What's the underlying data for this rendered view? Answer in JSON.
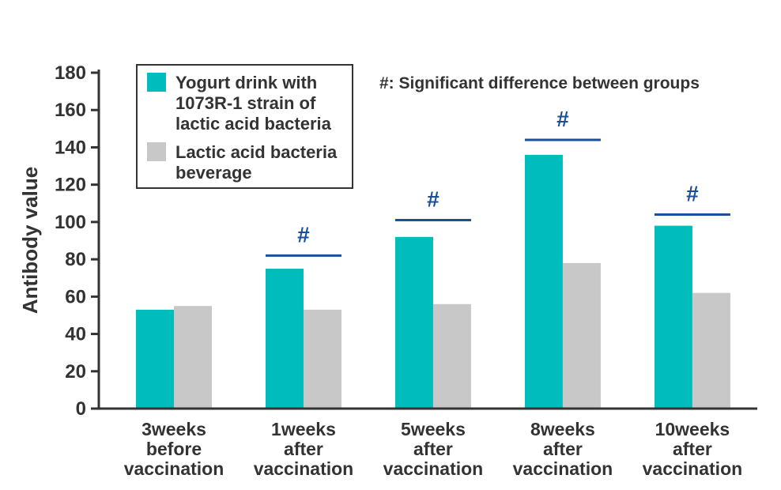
{
  "chart_data": {
    "type": "bar",
    "ylabel": "Antibody value",
    "xlabel": "",
    "ylim": [
      0,
      180
    ],
    "yticks": [
      0,
      20,
      40,
      60,
      80,
      100,
      120,
      140,
      160,
      180
    ],
    "grid": false,
    "legend_position": "top-left",
    "categories": [
      [
        "3weeks",
        "before",
        "vaccination"
      ],
      [
        "1weeks",
        "after",
        "vaccination"
      ],
      [
        "5weeks",
        "after",
        "vaccination"
      ],
      [
        "8weeks",
        "after",
        "vaccination"
      ],
      [
        "10weeks",
        "after",
        "vaccination"
      ]
    ],
    "series": [
      {
        "name": "Yogurt drink with 1073R-1 strain of lactic acid bacteria",
        "legend_lines": [
          "Yogurt drink with",
          "1073R-1 strain of",
          "lactic acid bacteria"
        ],
        "color": "#00bcbc",
        "values": [
          53,
          75,
          92,
          136,
          98
        ]
      },
      {
        "name": "Lactic acid bacteria beverage",
        "legend_lines": [
          "Lactic acid bacteria",
          "beverage"
        ],
        "color": "#c8c8c8",
        "values": [
          55,
          53,
          56,
          78,
          62
        ]
      }
    ],
    "significance": {
      "note": "#: Significant difference between groups",
      "marker": "#",
      "color": "#1a4f9c",
      "levels": [
        null,
        82,
        101,
        144,
        104
      ]
    }
  }
}
